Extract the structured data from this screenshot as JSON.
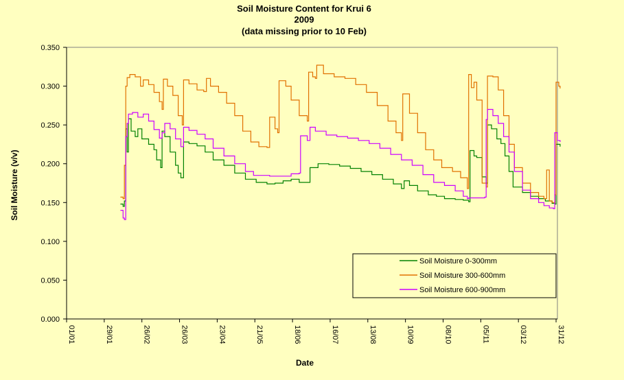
{
  "chart_data": {
    "type": "line",
    "title": "Soil Moisture Content for Krui 6",
    "subtitle_year": "2009",
    "subtitle_note": "(data missing  prior to 10 Feb)",
    "xlabel": "Date",
    "ylabel": "Soil Moisture (v/v)",
    "x_unit": "day of year (2009)",
    "xlim": [
      1,
      366
    ],
    "ylim": [
      0,
      0.35
    ],
    "y_ticks": [
      "0.000",
      "0.050",
      "0.100",
      "0.150",
      "0.200",
      "0.250",
      "0.300",
      "0.350"
    ],
    "x_ticks": [
      {
        "label": "01/01",
        "day": 1
      },
      {
        "label": "29/01",
        "day": 29
      },
      {
        "label": "26/02",
        "day": 57
      },
      {
        "label": "26/03",
        "day": 85
      },
      {
        "label": "23/04",
        "day": 113
      },
      {
        "label": "21/05",
        "day": 141
      },
      {
        "label": "18/06",
        "day": 169
      },
      {
        "label": "16/07",
        "day": 197
      },
      {
        "label": "13/08",
        "day": 225
      },
      {
        "label": "10/09",
        "day": 253
      },
      {
        "label": "08/10",
        "day": 281
      },
      {
        "label": "05/11",
        "day": 309
      },
      {
        "label": "03/12",
        "day": 337
      },
      {
        "label": "31/12",
        "day": 365
      }
    ],
    "grid": false,
    "legend_position": "bottom-right",
    "series": [
      {
        "name": "Soil Moisture 0-300mm",
        "color": "#008000",
        "points": [
          [
            41,
            0.148
          ],
          [
            43,
            0.145
          ],
          [
            44,
            0.152
          ],
          [
            45,
            0.245
          ],
          [
            46,
            0.215
          ],
          [
            47,
            0.258
          ],
          [
            49,
            0.242
          ],
          [
            52,
            0.235
          ],
          [
            54,
            0.245
          ],
          [
            57,
            0.232
          ],
          [
            62,
            0.225
          ],
          [
            66,
            0.218
          ],
          [
            68,
            0.205
          ],
          [
            71,
            0.195
          ],
          [
            72,
            0.242
          ],
          [
            74,
            0.235
          ],
          [
            78,
            0.215
          ],
          [
            82,
            0.198
          ],
          [
            84,
            0.188
          ],
          [
            86,
            0.182
          ],
          [
            88,
            0.228
          ],
          [
            92,
            0.226
          ],
          [
            98,
            0.223
          ],
          [
            104,
            0.215
          ],
          [
            110,
            0.205
          ],
          [
            118,
            0.198
          ],
          [
            126,
            0.188
          ],
          [
            134,
            0.18
          ],
          [
            142,
            0.176
          ],
          [
            150,
            0.174
          ],
          [
            156,
            0.175
          ],
          [
            162,
            0.178
          ],
          [
            168,
            0.18
          ],
          [
            174,
            0.176
          ],
          [
            180,
            0.176
          ],
          [
            182,
            0.195
          ],
          [
            188,
            0.2
          ],
          [
            196,
            0.199
          ],
          [
            204,
            0.197
          ],
          [
            212,
            0.194
          ],
          [
            220,
            0.19
          ],
          [
            228,
            0.186
          ],
          [
            236,
            0.18
          ],
          [
            244,
            0.174
          ],
          [
            250,
            0.168
          ],
          [
            252,
            0.178
          ],
          [
            256,
            0.172
          ],
          [
            262,
            0.165
          ],
          [
            270,
            0.16
          ],
          [
            276,
            0.158
          ],
          [
            282,
            0.155
          ],
          [
            290,
            0.154
          ],
          [
            296,
            0.153
          ],
          [
            300,
            0.151
          ],
          [
            301,
            0.217
          ],
          [
            304,
            0.21
          ],
          [
            306,
            0.208
          ],
          [
            310,
            0.183
          ],
          [
            313,
            0.175
          ],
          [
            314,
            0.25
          ],
          [
            317,
            0.245
          ],
          [
            321,
            0.232
          ],
          [
            324,
            0.226
          ],
          [
            327,
            0.21
          ],
          [
            330,
            0.19
          ],
          [
            333,
            0.17
          ],
          [
            340,
            0.163
          ],
          [
            346,
            0.158
          ],
          [
            352,
            0.155
          ],
          [
            357,
            0.152
          ],
          [
            362,
            0.149
          ],
          [
            364,
            0.148
          ],
          [
            365,
            0.225
          ],
          [
            368,
            0.222
          ]
        ]
      },
      {
        "name": "Soil Moisture 300-600mm",
        "color": "#e07000",
        "points": [
          [
            41,
            0.157
          ],
          [
            43,
            0.155
          ],
          [
            44,
            0.198
          ],
          [
            45,
            0.3
          ],
          [
            46,
            0.311
          ],
          [
            48,
            0.315
          ],
          [
            52,
            0.312
          ],
          [
            56,
            0.3
          ],
          [
            58,
            0.308
          ],
          [
            62,
            0.302
          ],
          [
            66,
            0.292
          ],
          [
            70,
            0.28
          ],
          [
            72,
            0.27
          ],
          [
            73,
            0.309
          ],
          [
            76,
            0.3
          ],
          [
            80,
            0.288
          ],
          [
            84,
            0.262
          ],
          [
            87,
            0.25
          ],
          [
            88,
            0.308
          ],
          [
            92,
            0.303
          ],
          [
            98,
            0.295
          ],
          [
            103,
            0.293
          ],
          [
            105,
            0.31
          ],
          [
            108,
            0.3
          ],
          [
            114,
            0.292
          ],
          [
            120,
            0.278
          ],
          [
            126,
            0.262
          ],
          [
            132,
            0.242
          ],
          [
            138,
            0.228
          ],
          [
            144,
            0.222
          ],
          [
            150,
            0.221
          ],
          [
            152,
            0.26
          ],
          [
            156,
            0.245
          ],
          [
            158,
            0.24
          ],
          [
            159,
            0.307
          ],
          [
            164,
            0.3
          ],
          [
            168,
            0.282
          ],
          [
            174,
            0.262
          ],
          [
            180,
            0.255
          ],
          [
            181,
            0.318
          ],
          [
            184,
            0.312
          ],
          [
            186,
            0.31
          ],
          [
            187,
            0.327
          ],
          [
            192,
            0.316
          ],
          [
            200,
            0.312
          ],
          [
            208,
            0.31
          ],
          [
            216,
            0.302
          ],
          [
            224,
            0.292
          ],
          [
            232,
            0.275
          ],
          [
            240,
            0.255
          ],
          [
            246,
            0.24
          ],
          [
            250,
            0.23
          ],
          [
            251,
            0.29
          ],
          [
            256,
            0.265
          ],
          [
            262,
            0.24
          ],
          [
            268,
            0.218
          ],
          [
            274,
            0.205
          ],
          [
            280,
            0.195
          ],
          [
            288,
            0.19
          ],
          [
            294,
            0.182
          ],
          [
            299,
            0.168
          ],
          [
            300,
            0.315
          ],
          [
            302,
            0.298
          ],
          [
            304,
            0.305
          ],
          [
            306,
            0.282
          ],
          [
            310,
            0.175
          ],
          [
            313,
            0.17
          ],
          [
            314,
            0.313
          ],
          [
            318,
            0.312
          ],
          [
            322,
            0.295
          ],
          [
            326,
            0.262
          ],
          [
            330,
            0.225
          ],
          [
            334,
            0.195
          ],
          [
            340,
            0.175
          ],
          [
            346,
            0.163
          ],
          [
            352,
            0.158
          ],
          [
            356,
            0.155
          ],
          [
            358,
            0.192
          ],
          [
            360,
            0.152
          ],
          [
            362,
            0.15
          ],
          [
            364,
            0.16
          ],
          [
            365,
            0.305
          ],
          [
            367,
            0.3
          ],
          [
            368,
            0.297
          ]
        ]
      },
      {
        "name": "Soil Moisture 600-900mm",
        "color": "#cc00ff",
        "points": [
          [
            41,
            0.14
          ],
          [
            43,
            0.13
          ],
          [
            44,
            0.128
          ],
          [
            45,
            0.235
          ],
          [
            46,
            0.252
          ],
          [
            47,
            0.264
          ],
          [
            50,
            0.266
          ],
          [
            54,
            0.26
          ],
          [
            58,
            0.264
          ],
          [
            62,
            0.255
          ],
          [
            66,
            0.244
          ],
          [
            70,
            0.233
          ],
          [
            72,
            0.24
          ],
          [
            74,
            0.252
          ],
          [
            78,
            0.245
          ],
          [
            82,
            0.232
          ],
          [
            86,
            0.222
          ],
          [
            88,
            0.247
          ],
          [
            92,
            0.243
          ],
          [
            98,
            0.238
          ],
          [
            104,
            0.232
          ],
          [
            110,
            0.22
          ],
          [
            118,
            0.21
          ],
          [
            126,
            0.2
          ],
          [
            134,
            0.19
          ],
          [
            140,
            0.185
          ],
          [
            146,
            0.185
          ],
          [
            152,
            0.184
          ],
          [
            160,
            0.184
          ],
          [
            168,
            0.187
          ],
          [
            174,
            0.188
          ],
          [
            175,
            0.236
          ],
          [
            180,
            0.23
          ],
          [
            182,
            0.247
          ],
          [
            186,
            0.242
          ],
          [
            194,
            0.237
          ],
          [
            202,
            0.235
          ],
          [
            210,
            0.233
          ],
          [
            218,
            0.23
          ],
          [
            226,
            0.226
          ],
          [
            234,
            0.22
          ],
          [
            242,
            0.212
          ],
          [
            250,
            0.205
          ],
          [
            258,
            0.198
          ],
          [
            266,
            0.186
          ],
          [
            274,
            0.176
          ],
          [
            282,
            0.172
          ],
          [
            290,
            0.165
          ],
          [
            296,
            0.158
          ],
          [
            299,
            0.155
          ],
          [
            300,
            0.156
          ],
          [
            310,
            0.156
          ],
          [
            312,
            0.157
          ],
          [
            313,
            0.257
          ],
          [
            314,
            0.27
          ],
          [
            318,
            0.262
          ],
          [
            322,
            0.252
          ],
          [
            326,
            0.235
          ],
          [
            330,
            0.215
          ],
          [
            334,
            0.19
          ],
          [
            340,
            0.166
          ],
          [
            346,
            0.155
          ],
          [
            352,
            0.15
          ],
          [
            356,
            0.146
          ],
          [
            360,
            0.143
          ],
          [
            363,
            0.142
          ],
          [
            364,
            0.24
          ],
          [
            366,
            0.23
          ],
          [
            368,
            0.228
          ]
        ]
      }
    ]
  }
}
